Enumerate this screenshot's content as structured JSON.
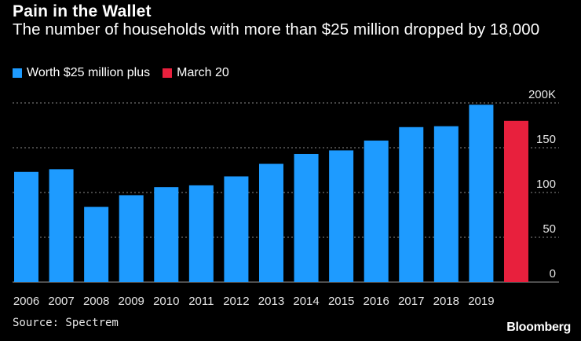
{
  "header": {
    "title": "Pain in the Wallet",
    "subtitle": "The number of households with more than $25 million dropped by 18,000"
  },
  "legend": {
    "items": [
      {
        "label": "Worth $25 million plus",
        "color": "#1e9bff"
      },
      {
        "label": "March 20",
        "color": "#e8203d"
      }
    ]
  },
  "footer": {
    "source": "Source: Spectrem",
    "brand": "Bloomberg"
  },
  "chart_data": {
    "type": "bar",
    "title": "Pain in the Wallet",
    "categories": [
      "2006",
      "2007",
      "2008",
      "2009",
      "2010",
      "2011",
      "2012",
      "2013",
      "2014",
      "2015",
      "2016",
      "2017",
      "2018",
      "2019",
      ""
    ],
    "series": [
      {
        "name": "Worth $25 million plus",
        "color": "#1e9bff",
        "values": [
          123,
          126,
          84,
          97,
          106,
          108,
          118,
          132,
          143,
          147,
          158,
          173,
          174,
          198,
          null
        ]
      },
      {
        "name": "March 20",
        "color": "#e8203d",
        "values": [
          null,
          null,
          null,
          null,
          null,
          null,
          null,
          null,
          null,
          null,
          null,
          null,
          null,
          null,
          180
        ]
      }
    ],
    "ylim": [
      0,
      200
    ],
    "yticks": [
      0,
      50,
      100,
      150,
      200
    ],
    "ytick_labels": [
      "0",
      "50",
      "100",
      "150",
      "200K"
    ],
    "xlabel": "",
    "ylabel": "",
    "grid": true,
    "axis_side": "right"
  }
}
